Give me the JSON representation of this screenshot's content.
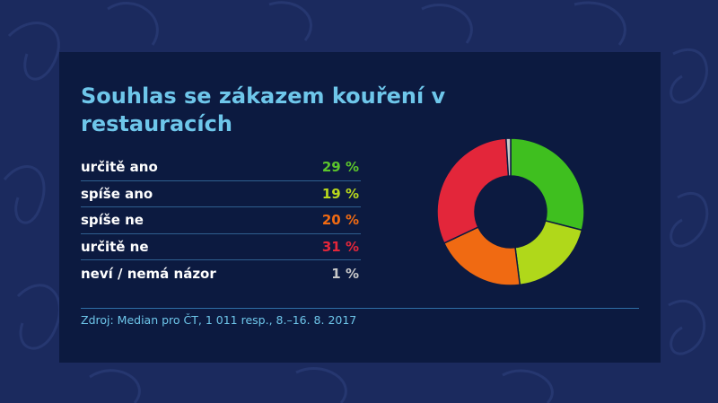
{
  "title": "Souhlas se zákazem kouření v restauracích",
  "source": "Zdroj: Median pro ČT, 1 011 resp., 8.–16. 8. 2017",
  "rows": [
    {
      "label": "určitě ano",
      "value_text": "29 %",
      "color": "#5cc52c"
    },
    {
      "label": "spíše ano",
      "value_text": "19 %",
      "color": "#b9d81c"
    },
    {
      "label": "spíše ne",
      "value_text": "20 %",
      "color": "#f06a12"
    },
    {
      "label": "určitě ne",
      "value_text": "31 %",
      "color": "#e3263a"
    },
    {
      "label": "neví / nemá názor",
      "value_text": "1 %",
      "color": "#c9c9c9"
    }
  ],
  "chart_data": {
    "type": "pie",
    "donut": true,
    "categories": [
      "určitě ano",
      "spíše ano",
      "spíše ne",
      "určitě ne",
      "neví / nemá názor"
    ],
    "values": [
      29,
      19,
      20,
      31,
      1
    ],
    "colors": [
      "#3fbf1f",
      "#b0d81a",
      "#f06a12",
      "#e3263a",
      "#c9c9c9"
    ],
    "unit": "%"
  }
}
